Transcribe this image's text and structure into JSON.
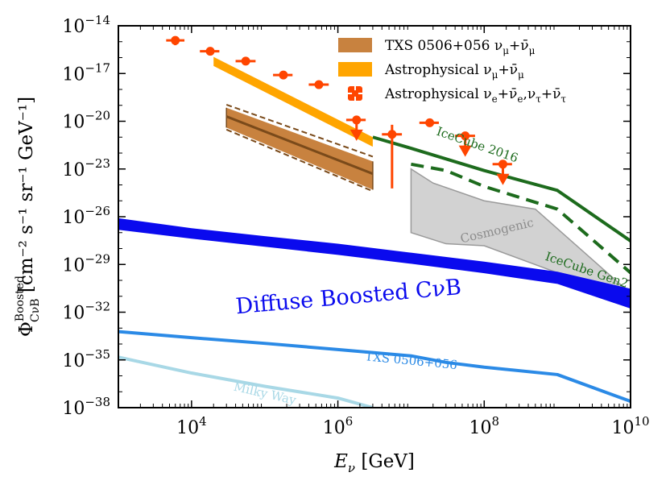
{
  "chart_data": {
    "type": "line",
    "title": "",
    "xlabel": "E",
    "xlabel_sub": "ν",
    "xlabel_unit": "[GeV]",
    "ylabel": "Φ",
    "ylabel_sup": "Boosted",
    "ylabel_sub": "CνB",
    "ylabel_unit": "[cm⁻² s⁻¹ sr⁻¹ GeV⁻¹]",
    "xscale": "log",
    "yscale": "log",
    "xlim": [
      1000,
      10000000000
    ],
    "ylim": [
      1e-38,
      1e-14
    ],
    "x_ticks": [
      {
        "value": 10000,
        "base": "10",
        "exp": "4"
      },
      {
        "value": 1000000,
        "base": "10",
        "exp": "6"
      },
      {
        "value": 100000000,
        "base": "10",
        "exp": "8"
      },
      {
        "value": 10000000000,
        "base": "10",
        "exp": "10"
      }
    ],
    "y_ticks": [
      {
        "value": 1e-14,
        "base": "10",
        "exp": "−14"
      },
      {
        "value": 1e-17,
        "base": "10",
        "exp": "−17"
      },
      {
        "value": 1e-20,
        "base": "10",
        "exp": "−20"
      },
      {
        "value": 1e-23,
        "base": "10",
        "exp": "−23"
      },
      {
        "value": 1e-26,
        "base": "10",
        "exp": "−26"
      },
      {
        "value": 1e-29,
        "base": "10",
        "exp": "−29"
      },
      {
        "value": 1e-32,
        "base": "10",
        "exp": "−32"
      },
      {
        "value": 1e-35,
        "base": "10",
        "exp": "−35"
      },
      {
        "value": 1e-38,
        "base": "10",
        "exp": "−38"
      }
    ],
    "legend": {
      "position": "top-right",
      "entries": [
        {
          "label": "TXS 0506+056 ν",
          "sub1": "μ",
          "plus": "+ν̄",
          "sub2": "μ",
          "color": "#c8823f",
          "kind": "patch"
        },
        {
          "label": "Astrophysical ν",
          "sub1": "μ",
          "plus": "+ν̄",
          "sub2": "μ",
          "color": "#ffa500",
          "kind": "patch"
        },
        {
          "label": "Astrophysical ν",
          "sub1": "e",
          "plus": "+ν̄",
          "sub2": "e",
          "extra": ",ν",
          "sub3": "τ",
          "plus2": "+ν̄",
          "sub4": "τ",
          "color": "#ff4500",
          "kind": "marker"
        }
      ]
    },
    "series": [
      {
        "name": "Diffuse Boosted CνB",
        "kind": "band",
        "color": "#0a0aee",
        "label_text": "Diffuse Boosted CνB",
        "label_at": [
          1400000,
          8e-32
        ],
        "label_rotation": -5.0,
        "x": [
          1000,
          10000,
          100000,
          1000000,
          10000000,
          100000000,
          1000000000,
          10000000000
        ],
        "upper": [
          8e-27,
          1.9e-27,
          6e-28,
          2e-28,
          5.5e-29,
          1.5e-29,
          3.5e-30,
          3e-31
        ],
        "lower": [
          1.5e-27,
          4.2e-28,
          1.3e-28,
          4e-29,
          1.1e-29,
          2.8e-30,
          6e-31,
          1.7e-32
        ]
      },
      {
        "name": "TXS 0506+056",
        "kind": "line",
        "color": "#2b8ae6",
        "label_text": "TXS 0506+056",
        "label_at": [
          10000000,
          8e-36
        ],
        "label_rotation": 5.5,
        "x": [
          1000,
          10000,
          100000,
          1000000,
          10000000,
          30000000,
          100000000,
          1000000000,
          10000000000
        ],
        "values": [
          6e-34,
          2.5e-34,
          1.1e-34,
          4.5e-35,
          1.8e-35,
          7e-36,
          3.5e-36,
          1.2e-36,
          2.5e-38
        ]
      },
      {
        "name": "Milky Way",
        "kind": "line",
        "color": "#a8d8e6",
        "label_text": "Milky Way",
        "label_at": [
          100000,
          7e-38
        ],
        "label_rotation": 13,
        "x": [
          1000,
          10000,
          100000,
          1000000,
          3000000
        ],
        "values": [
          1.5e-35,
          1.5e-36,
          2.2e-37,
          4e-38,
          1e-38
        ]
      },
      {
        "name": "IceCube 2016",
        "kind": "line",
        "color": "#1d6b1d",
        "label_text": "IceCube 2016",
        "label_at": [
          80000000,
          3e-22
        ],
        "label_rotation": 19,
        "x": [
          3000000,
          10000000,
          100000000,
          1000000000,
          10000000000
        ],
        "values": [
          1e-21,
          2e-22,
          8e-24,
          4.5e-25,
          3e-28
        ]
      },
      {
        "name": "IceCube Gen2",
        "kind": "dashed-line",
        "color": "#1d6b1d",
        "label_text": "IceCube Gen2",
        "label_at": [
          2500000000,
          4e-30
        ],
        "label_rotation": 19,
        "x": [
          10000000,
          30000000,
          100000000,
          1000000000,
          10000000000
        ],
        "values": [
          2e-23,
          8e-24,
          8e-25,
          3e-26,
          3e-30
        ]
      },
      {
        "name": "Cosmogenic",
        "kind": "polygon",
        "color": "#b4b4b4",
        "label_text": "Cosmogenic",
        "label_at": [
          150000000,
          1.2e-27
        ],
        "label_rotation": -13,
        "points": [
          [
            10000000,
            1e-23
          ],
          [
            20000000,
            1.3e-24
          ],
          [
            100000000,
            1e-25
          ],
          [
            500000000,
            3e-26
          ],
          [
            10000000000,
            1.5e-31
          ],
          [
            10000000000,
            3e-32
          ],
          [
            1000000000,
            3e-30
          ],
          [
            100000000,
            1.5e-28
          ],
          [
            30000000,
            2e-28
          ],
          [
            10000000,
            1e-27
          ]
        ]
      },
      {
        "name": "Astrophysical νμ+ν̄μ",
        "kind": "band",
        "color": "#ffa500",
        "x": [
          20000,
          3000000
        ],
        "upper": [
          1.1e-16,
          1e-21
        ],
        "lower": [
          3e-17,
          2.5e-22
        ]
      },
      {
        "name": "TXS 0506+056 νμ+ν̄μ",
        "kind": "band-with-lines",
        "color": "#c8823f",
        "edge_color": "#7a4a1a",
        "x": [
          30000,
          3000000
        ],
        "upper": [
          7e-20,
          3e-23
        ],
        "lower": [
          4e-21,
          5e-25
        ],
        "center": [
          2e-20,
          5e-24
        ],
        "dash_upper": [
          1.1e-19,
          6e-23
        ],
        "dash_lower": [
          3e-21,
          4e-25
        ]
      },
      {
        "name": "Astrophysical νe+ν̄e,ντ+ν̄τ",
        "kind": "errorbars",
        "color": "#ff4500",
        "points": [
          {
            "x": 6000,
            "y": 1.2e-15,
            "xerr": [
              4500,
              8000
            ],
            "yerr": [
              6e-16,
              2.2e-15
            ],
            "uplim": false
          },
          {
            "x": 18000,
            "y": 2.5e-16,
            "xerr": [
              13000,
              24000
            ],
            "yerr": [
              1.8e-16,
              3.5e-16
            ],
            "uplim": false
          },
          {
            "x": 55000,
            "y": 6e-17,
            "xerr": [
              40000,
              75000
            ],
            "yerr": [
              4.5e-17,
              7.5e-17
            ],
            "uplim": false
          },
          {
            "x": 180000,
            "y": 8e-18,
            "xerr": [
              130000,
              240000
            ],
            "yerr": [
              6e-18,
              1e-17
            ],
            "uplim": false
          },
          {
            "x": 550000,
            "y": 2e-18,
            "xerr": [
              400000,
              750000
            ],
            "yerr": [
              1.5e-18,
              2.6e-18
            ],
            "uplim": false
          },
          {
            "x": 1800000,
            "y": 1.2e-20,
            "xerr": [
              1300000,
              2400000
            ],
            "yerr": [
              1.2e-20,
              1.2e-20
            ],
            "uplim": true
          },
          {
            "x": 5500000,
            "y": 1.5e-21,
            "xerr": [
              4000000,
              7500000
            ],
            "yerr": [
              6e-25,
              6e-21
            ],
            "uplim": false
          },
          {
            "x": 18000000,
            "y": 8e-21,
            "xerr": [
              13000000,
              24000000
            ],
            "yerr": [
              6e-21,
              1e-20
            ],
            "uplim": false
          },
          {
            "x": 55000000,
            "y": 1.2e-21,
            "xerr": [
              40000000,
              75000000
            ],
            "yerr": [
              1.2e-21,
              1.2e-21
            ],
            "uplim": true
          },
          {
            "x": 180000000,
            "y": 2e-23,
            "xerr": [
              130000000,
              240000000
            ],
            "yerr": [
              2e-23,
              2e-23
            ],
            "uplim": true
          }
        ]
      }
    ]
  }
}
